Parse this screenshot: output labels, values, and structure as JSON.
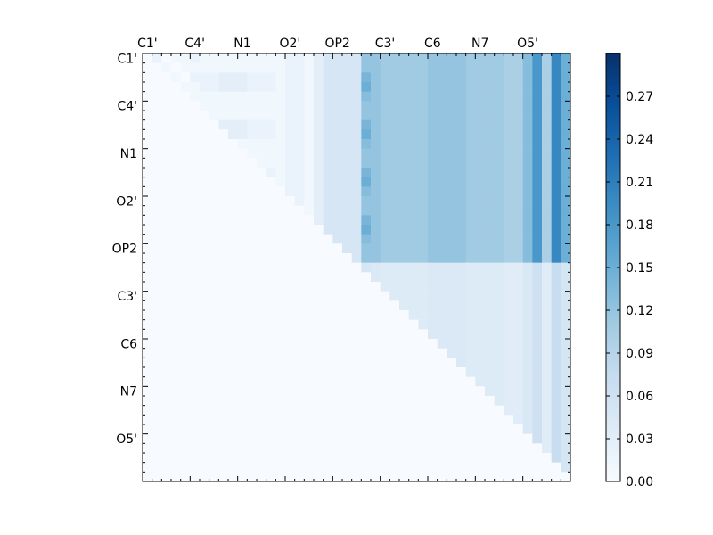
{
  "chart_data": {
    "type": "heatmap",
    "title": "",
    "colormap": "Blues",
    "colormap_stops": [
      "#f7fbff",
      "#deebf7",
      "#c6dbef",
      "#9ecae1",
      "#6baed6",
      "#4292c6",
      "#2171b5",
      "#08519c",
      "#08306b"
    ],
    "matrix_size": 45,
    "x_tick_labels": [
      "C1'",
      "C4'",
      "N1",
      "O2'",
      "OP2",
      "C3'",
      "C6",
      "N7",
      "O5'"
    ],
    "y_tick_labels": [
      "C1'",
      "C4'",
      "N1",
      "O2'",
      "OP2",
      "C3'",
      "C6",
      "N7",
      "O5'"
    ],
    "tick_label_index_step": 5,
    "value_range": [
      0,
      0.3
    ],
    "colorbar_ticks": [
      "0.00",
      "0.03",
      "0.06",
      "0.09",
      "0.12",
      "0.15",
      "0.18",
      "0.21",
      "0.24",
      "0.27"
    ],
    "row_values": [
      [
        0.02,
        0.02,
        0,
        0.01,
        0.01,
        0.02,
        0.01,
        0.01,
        0.01,
        0.01,
        0.01,
        0.01,
        0.01,
        0.01,
        0.01,
        0.02,
        0.02,
        0.01,
        0.03,
        0.05,
        0.05,
        0.05,
        0.05,
        0.12,
        0.12,
        0.11,
        0.11,
        0.11,
        0.11,
        0.11,
        0.12,
        0.12,
        0.12,
        0.12,
        0.11,
        0.11,
        0.11,
        0.11,
        0.1,
        0.1,
        0.13,
        0.18,
        0.1,
        0.2,
        0.15
      ],
      [
        0.02,
        0.02,
        0.01,
        0,
        0.01,
        0.01,
        0.01,
        0.01,
        0.01,
        0.01,
        0.01,
        0.01,
        0.01,
        0.01,
        0.01,
        0.02,
        0.02,
        0.01,
        0.03,
        0.05,
        0.05,
        0.05,
        0.05,
        0.12,
        0.12,
        0.11,
        0.11,
        0.11,
        0.11,
        0.11,
        0.12,
        0.12,
        0.12,
        0.12,
        0.11,
        0.11,
        0.11,
        0.11,
        0.1,
        0.1,
        0.13,
        0.18,
        0.1,
        0.2,
        0.15
      ],
      [
        0.02,
        0.02,
        0.01,
        0.01,
        0,
        0.02,
        0.02,
        0.02,
        0.03,
        0.03,
        0.03,
        0.02,
        0.02,
        0.02,
        0.01,
        0.02,
        0.02,
        0.01,
        0.03,
        0.05,
        0.05,
        0.05,
        0.05,
        0.14,
        0.12,
        0.11,
        0.11,
        0.11,
        0.11,
        0.11,
        0.12,
        0.12,
        0.12,
        0.12,
        0.11,
        0.11,
        0.11,
        0.11,
        0.1,
        0.1,
        0.13,
        0.18,
        0.1,
        0.2,
        0.15
      ],
      [
        0.02,
        0.02,
        0.02,
        0.01,
        0.01,
        0.01,
        0.02,
        0.02,
        0.03,
        0.03,
        0.03,
        0.02,
        0.02,
        0.02,
        0.01,
        0.02,
        0.02,
        0.01,
        0.03,
        0.05,
        0.05,
        0.05,
        0.05,
        0.15,
        0.12,
        0.11,
        0.11,
        0.11,
        0.11,
        0.11,
        0.12,
        0.12,
        0.12,
        0.12,
        0.11,
        0.11,
        0.11,
        0.11,
        0.1,
        0.1,
        0.13,
        0.18,
        0.1,
        0.2,
        0.15
      ],
      [
        0.02,
        0.02,
        0.02,
        0.01,
        0.01,
        0.01,
        0.01,
        0.01,
        0.01,
        0.01,
        0.01,
        0.01,
        0.01,
        0.01,
        0.01,
        0.02,
        0.02,
        0.01,
        0.03,
        0.05,
        0.05,
        0.05,
        0.05,
        0.13,
        0.12,
        0.11,
        0.11,
        0.11,
        0.11,
        0.11,
        0.12,
        0.12,
        0.12,
        0.12,
        0.11,
        0.11,
        0.11,
        0.11,
        0.1,
        0.1,
        0.13,
        0.18,
        0.1,
        0.2,
        0.15
      ]
    ]
  }
}
